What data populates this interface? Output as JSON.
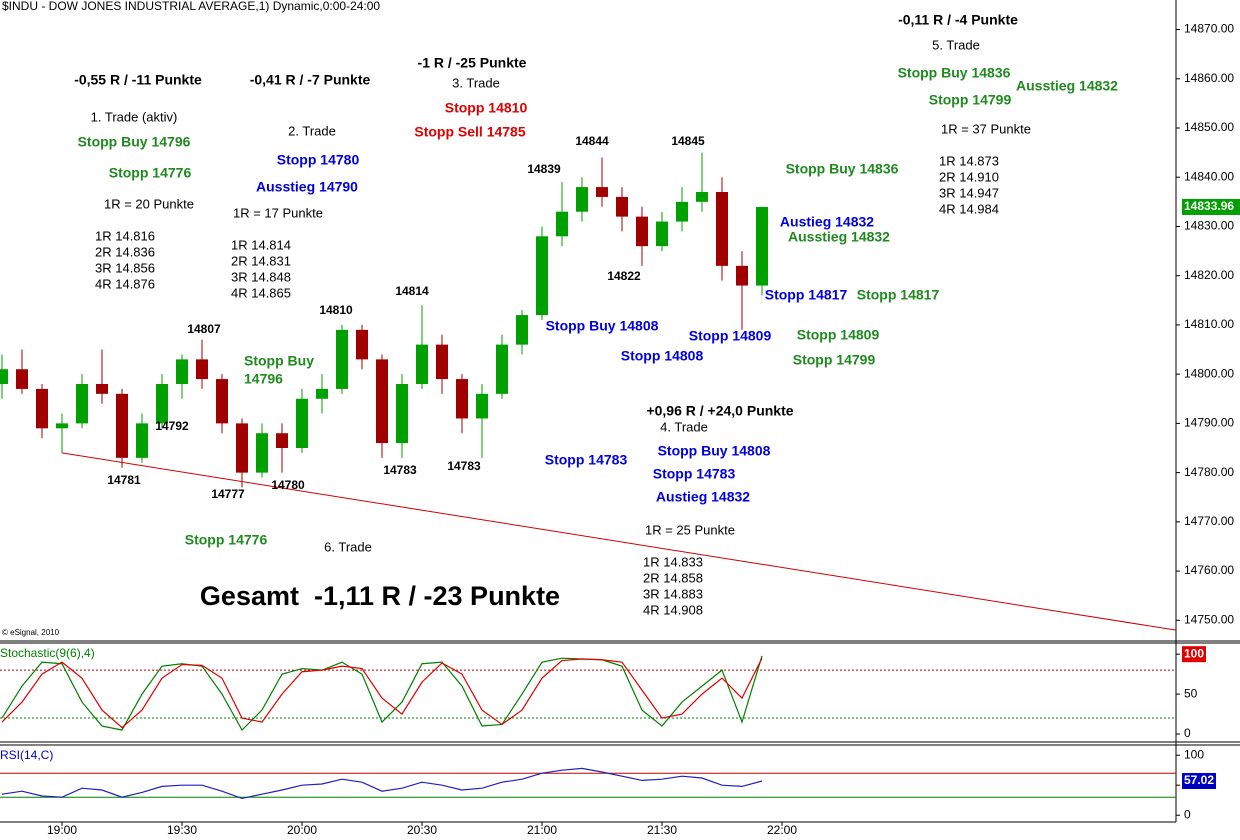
{
  "title": "$INDU - DOW JONES INDUSTRIAL AVERAGE,1) Dynamic,0:00-24:00",
  "copyright": "© eSignal, 2010",
  "chart_data": [
    {
      "type": "candlestick",
      "up_color": "#00a000",
      "down_color": "#a00000",
      "x": [
        1125,
        1130,
        1135,
        1140,
        1145,
        1150,
        1155,
        1160,
        1165,
        1170,
        1175,
        1180,
        1185,
        1190,
        1195,
        1200,
        1205,
        1210,
        1215,
        1220,
        1225,
        1230,
        1235,
        1240,
        1245,
        1250,
        1255,
        1260,
        1265,
        1270,
        1275,
        1280,
        1285,
        1290,
        1295,
        1300,
        1305,
        1310,
        1315
      ],
      "open": [
        14798,
        14801,
        14797,
        14789,
        14790,
        14798,
        14796,
        14783,
        14790,
        14798,
        14803,
        14799,
        14790,
        14780,
        14788,
        14785,
        14795,
        14797,
        14809,
        14803,
        14786,
        14798,
        14806,
        14799,
        14791,
        14796,
        14806,
        14812,
        14828,
        14833,
        14838,
        14836,
        14832,
        14826,
        14831,
        14835,
        14837,
        14822,
        14818
      ],
      "high": [
        14804,
        14805,
        14798,
        14792,
        14800,
        14805,
        14797,
        14792,
        14800,
        14804,
        14807,
        14800,
        14791,
        14790,
        14790,
        14797,
        14800,
        14810,
        14810,
        14804,
        14800,
        14814,
        14808,
        14800,
        14798,
        14808,
        14813,
        14830,
        14839,
        14840,
        14844,
        14838,
        14834,
        14833,
        14838,
        14845,
        14840,
        14825,
        14834
      ],
      "low": [
        14795,
        14796,
        14787,
        14784,
        14789,
        14794,
        14781,
        14782,
        14789,
        14795,
        14797,
        14788,
        14777,
        14779,
        14780,
        14784,
        14792,
        14796,
        14801,
        14783,
        14783,
        14797,
        14796,
        14788,
        14783,
        14795,
        14804,
        14811,
        14826,
        14831,
        14834,
        14829,
        14822,
        14825,
        14829,
        14833,
        14819,
        14809,
        14816
      ],
      "close": [
        14801,
        14797,
        14789,
        14790,
        14798,
        14796,
        14783,
        14790,
        14798,
        14803,
        14799,
        14790,
        14780,
        14788,
        14785,
        14795,
        14797,
        14809,
        14803,
        14786,
        14798,
        14806,
        14799,
        14791,
        14796,
        14806,
        14812,
        14828,
        14833,
        14838,
        14836,
        14832,
        14826,
        14831,
        14835,
        14837,
        14822,
        14818,
        14833.96
      ],
      "xlim": [
        1124.5,
        1418.5
      ],
      "xticks": [
        {
          "value": 1140,
          "label": "19:00"
        },
        {
          "value": 1170,
          "label": "19:30"
        },
        {
          "value": 1200,
          "label": "20:00"
        },
        {
          "value": 1230,
          "label": "20:30"
        },
        {
          "value": 1260,
          "label": "21:00"
        },
        {
          "value": 1290,
          "label": "21:30"
        },
        {
          "value": 1320,
          "label": "22:00"
        }
      ],
      "ylim": [
        14746,
        14876
      ],
      "yticks": [
        {
          "value": 14750,
          "label": "14750.00"
        },
        {
          "value": 14760,
          "label": "14760.00"
        },
        {
          "value": 14770,
          "label": "14770.00"
        },
        {
          "value": 14780,
          "label": "14780.00"
        },
        {
          "value": 14790,
          "label": "14790.00"
        },
        {
          "value": 14800,
          "label": "14800.00"
        },
        {
          "value": 14810,
          "label": "14810.00"
        },
        {
          "value": 14820,
          "label": "14820.00"
        },
        {
          "value": 14830,
          "label": "14830.00"
        },
        {
          "value": 14840,
          "label": "14840.00"
        },
        {
          "value": 14850,
          "label": "14850.00"
        },
        {
          "value": 14860,
          "label": "14860.00"
        },
        {
          "value": 14870,
          "label": "14870.00"
        }
      ],
      "trendline": {
        "x": [
          1140,
          1418.5
        ],
        "y": [
          14784,
          14748
        ],
        "color": "#d00000"
      }
    },
    {
      "type": "line",
      "title": "Stochastic(9(6),4)",
      "title_color": "#008000",
      "x": [
        1125,
        1130,
        1135,
        1140,
        1145,
        1150,
        1155,
        1160,
        1165,
        1170,
        1175,
        1180,
        1185,
        1190,
        1195,
        1200,
        1205,
        1210,
        1215,
        1220,
        1225,
        1230,
        1235,
        1240,
        1245,
        1250,
        1255,
        1260,
        1265,
        1270,
        1275,
        1280,
        1285,
        1290,
        1295,
        1300,
        1305,
        1310,
        1315
      ],
      "series": [
        {
          "color": "#008000",
          "values": [
            20,
            60,
            90,
            88,
            40,
            10,
            5,
            50,
            85,
            88,
            85,
            50,
            5,
            30,
            75,
            82,
            80,
            90,
            75,
            15,
            40,
            88,
            90,
            60,
            10,
            12,
            50,
            90,
            95,
            94,
            93,
            85,
            30,
            10,
            40,
            60,
            80,
            15,
            98
          ]
        },
        {
          "color": "#e00000",
          "values": [
            15,
            40,
            75,
            90,
            70,
            30,
            8,
            30,
            70,
            87,
            86,
            70,
            20,
            15,
            50,
            78,
            80,
            85,
            82,
            45,
            25,
            65,
            89,
            75,
            30,
            12,
            30,
            70,
            92,
            94,
            93,
            90,
            55,
            20,
            25,
            50,
            70,
            45,
            95
          ]
        }
      ],
      "levels": [
        {
          "value": 80,
          "color": "#c00000"
        },
        {
          "value": 20,
          "color": "#008000"
        }
      ],
      "ylim": [
        -10,
        114
      ],
      "yticks": [
        0,
        50,
        100
      ],
      "highlight_color": "#e00000"
    },
    {
      "type": "line",
      "title": "RSI(14,C)",
      "title_color": "#0000c0",
      "x": [
        1125,
        1130,
        1135,
        1140,
        1145,
        1150,
        1155,
        1160,
        1165,
        1170,
        1175,
        1180,
        1185,
        1190,
        1195,
        1200,
        1205,
        1210,
        1215,
        1220,
        1225,
        1230,
        1235,
        1240,
        1245,
        1250,
        1255,
        1260,
        1265,
        1270,
        1275,
        1280,
        1285,
        1290,
        1295,
        1300,
        1305,
        1310,
        1315
      ],
      "series": [
        {
          "color": "#2020c0",
          "values": [
            35,
            40,
            32,
            30,
            45,
            42,
            30,
            38,
            48,
            50,
            50,
            40,
            28,
            35,
            42,
            50,
            52,
            60,
            55,
            40,
            45,
            55,
            50,
            42,
            45,
            55,
            60,
            70,
            75,
            78,
            72,
            65,
            58,
            60,
            65,
            62,
            50,
            48,
            57.02
          ]
        }
      ],
      "levels": [
        {
          "value": 70,
          "color": "#c00000"
        },
        {
          "value": 30,
          "color": "#008000"
        }
      ],
      "ylim": [
        -8,
        117
      ],
      "yticks": [
        0,
        50,
        100
      ],
      "last_color": "#0000c0"
    }
  ],
  "annotations": [
    {
      "text": "-0,55 R / -11 Punkte",
      "color": "#000"
    },
    {
      "text": "1. Trade (aktiv)",
      "color": "#000"
    },
    {
      "text": "Stopp Buy 14796",
      "color": "#1f8a1f"
    },
    {
      "text": "Stopp 14776",
      "color": "#1f8a1f"
    },
    {
      "text": "1R = 20 Punkte",
      "color": "#000"
    },
    {
      "text": "1R 14.816",
      "color": "#000"
    },
    {
      "text": "2R 14.836",
      "color": "#000"
    },
    {
      "text": "3R 14.856",
      "color": "#000"
    },
    {
      "text": "4R 14.876",
      "color": "#000"
    },
    {
      "text": "-0,41 R / -7 Punkte",
      "color": "#000"
    },
    {
      "text": "2. Trade",
      "color": "#000"
    },
    {
      "text": "Stopp 14780",
      "color": "#0000e0"
    },
    {
      "text": "Ausstieg 14790",
      "color": "#0000e0"
    },
    {
      "text": "1R = 17 Punkte",
      "color": "#000"
    },
    {
      "text": "1R 14.814",
      "color": "#000"
    },
    {
      "text": "2R 14.831",
      "color": "#000"
    },
    {
      "text": "3R 14.848",
      "color": "#000"
    },
    {
      "text": "4R 14.865",
      "color": "#000"
    },
    {
      "text": "-1 R / -25 Punkte",
      "color": "#000"
    },
    {
      "text": "3. Trade",
      "color": "#000"
    },
    {
      "text": "Stopp 14810",
      "color": "#e00000"
    },
    {
      "text": "Stopp Sell 14785",
      "color": "#e00000"
    },
    {
      "text": "-0,11 R / -4 Punkte",
      "color": "#000"
    },
    {
      "text": "5. Trade",
      "color": "#000"
    },
    {
      "text": "Stopp Buy 14836",
      "color": "#1f8a1f"
    },
    {
      "text": "Stopp 14799",
      "color": "#1f8a1f"
    },
    {
      "text": "Ausstieg 14832",
      "color": "#1f8a1f"
    },
    {
      "text": "1R = 37 Punkte",
      "color": "#000"
    },
    {
      "text": "1R 14.873",
      "color": "#000"
    },
    {
      "text": "2R 14.910",
      "color": "#000"
    },
    {
      "text": "3R 14.947",
      "color": "#000"
    },
    {
      "text": "4R 14.984",
      "color": "#000"
    },
    {
      "text": "Stopp Buy 14836",
      "color": "#1f8a1f"
    },
    {
      "text": "Austieg 14832",
      "color": "#0000e0"
    },
    {
      "text": "Ausstieg 14832",
      "color": "#1f8a1f"
    },
    {
      "text": "Stopp 14817",
      "color": "#0000e0"
    },
    {
      "text": "Stopp 14817",
      "color": "#1f8a1f"
    },
    {
      "text": "Stopp 14809",
      "color": "#0000e0"
    },
    {
      "text": "Stopp 14809",
      "color": "#1f8a1f"
    },
    {
      "text": "Stopp 14799",
      "color": "#1f8a1f"
    },
    {
      "text": "Stopp Buy 14808",
      "color": "#0000e0"
    },
    {
      "text": "Stopp 14808",
      "color": "#0000e0"
    },
    {
      "text": "+0,96 R / +24,0 Punkte",
      "color": "#000"
    },
    {
      "text": "4. Trade",
      "color": "#000"
    },
    {
      "text": "Stopp 14783",
      "color": "#0000e0"
    },
    {
      "text": "Stopp Buy 14808",
      "color": "#0000e0"
    },
    {
      "text": "Stopp 14783",
      "color": "#0000e0"
    },
    {
      "text": "Austieg 14832",
      "color": "#0000e0"
    },
    {
      "text": "1R = 25 Punkte",
      "color": "#000"
    },
    {
      "text": "1R 14.833",
      "color": "#000"
    },
    {
      "text": "2R 14.858",
      "color": "#000"
    },
    {
      "text": "3R 14.883",
      "color": "#000"
    },
    {
      "text": "4R 14.908",
      "color": "#000"
    },
    {
      "text": "Stopp Buy",
      "color": "#1f8a1f"
    },
    {
      "text": "14796",
      "color": "#1f8a1f"
    },
    {
      "text": "Stopp 14776",
      "color": "#1f8a1f"
    },
    {
      "text": "6. Trade",
      "color": "#000"
    },
    {
      "text": "Gesamt  -1,11 R / -23 Punkte",
      "color": "#000"
    },
    {
      "text": "14807",
      "color": "#000"
    },
    {
      "text": "14810",
      "color": "#000"
    },
    {
      "text": "14814",
      "color": "#000"
    },
    {
      "text": "14839",
      "color": "#000"
    },
    {
      "text": "14844",
      "color": "#000"
    },
    {
      "text": "14845",
      "color": "#000"
    },
    {
      "text": "14822",
      "color": "#000"
    },
    {
      "text": "14792",
      "color": "#000"
    },
    {
      "text": "14781",
      "color": "#000"
    },
    {
      "text": "14777",
      "color": "#000"
    },
    {
      "text": "14780",
      "color": "#000"
    },
    {
      "text": "14783",
      "color": "#000"
    },
    {
      "text": "14783",
      "color": "#000"
    }
  ]
}
